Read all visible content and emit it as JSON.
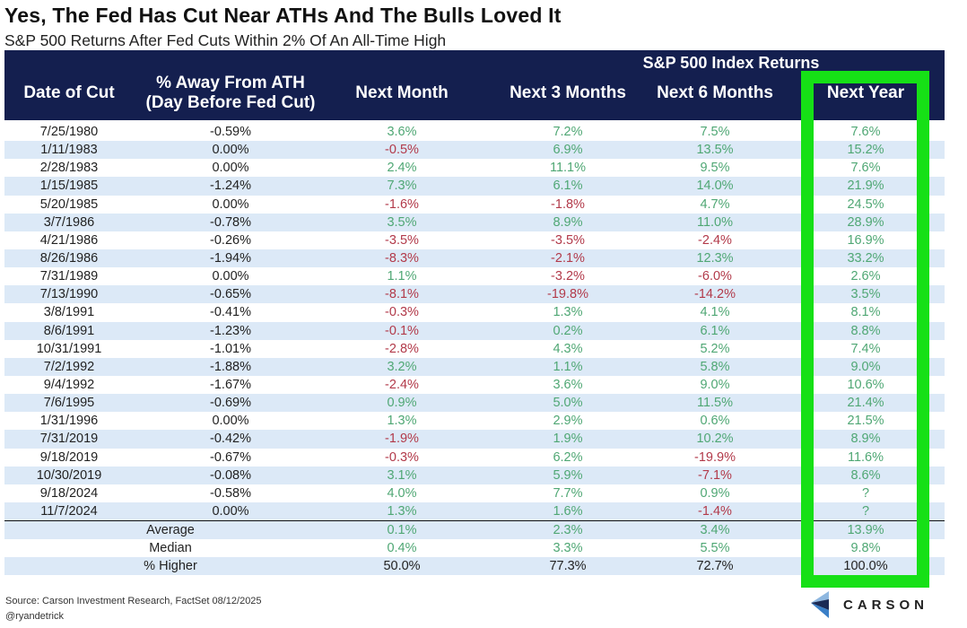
{
  "title": "Yes, The Fed Has Cut Near ATHs And The Bulls Loved It",
  "subtitle": "S&P 500 Returns After Fed Cuts Within 2% Of An All-Time High",
  "table": {
    "group_header": "S&P 500 Index Returns",
    "columns": [
      "Date of Cut",
      "% Away From ATH\n(Day Before Fed Cut)",
      "Next Month",
      "Next 3 Months",
      "Next 6 Months",
      "Next Year"
    ],
    "rows": [
      [
        "7/25/1980",
        "-0.59%",
        "3.6%",
        "7.2%",
        "7.5%",
        "7.6%"
      ],
      [
        "1/11/1983",
        "0.00%",
        "-0.5%",
        "6.9%",
        "13.5%",
        "15.2%"
      ],
      [
        "2/28/1983",
        "0.00%",
        "2.4%",
        "11.1%",
        "9.5%",
        "7.6%"
      ],
      [
        "1/15/1985",
        "-1.24%",
        "7.3%",
        "6.1%",
        "14.0%",
        "21.9%"
      ],
      [
        "5/20/1985",
        "0.00%",
        "-1.6%",
        "-1.8%",
        "4.7%",
        "24.5%"
      ],
      [
        "3/7/1986",
        "-0.78%",
        "3.5%",
        "8.9%",
        "11.0%",
        "28.9%"
      ],
      [
        "4/21/1986",
        "-0.26%",
        "-3.5%",
        "-3.5%",
        "-2.4%",
        "16.9%"
      ],
      [
        "8/26/1986",
        "-1.94%",
        "-8.3%",
        "-2.1%",
        "12.3%",
        "33.2%"
      ],
      [
        "7/31/1989",
        "0.00%",
        "1.1%",
        "-3.2%",
        "-6.0%",
        "2.6%"
      ],
      [
        "7/13/1990",
        "-0.65%",
        "-8.1%",
        "-19.8%",
        "-14.2%",
        "3.5%"
      ],
      [
        "3/8/1991",
        "-0.41%",
        "-0.3%",
        "1.3%",
        "4.1%",
        "8.1%"
      ],
      [
        "8/6/1991",
        "-1.23%",
        "-0.1%",
        "0.2%",
        "6.1%",
        "8.8%"
      ],
      [
        "10/31/1991",
        "-1.01%",
        "-2.8%",
        "4.3%",
        "5.2%",
        "7.4%"
      ],
      [
        "7/2/1992",
        "-1.88%",
        "3.2%",
        "1.1%",
        "5.8%",
        "9.0%"
      ],
      [
        "9/4/1992",
        "-1.67%",
        "-2.4%",
        "3.6%",
        "9.0%",
        "10.6%"
      ],
      [
        "7/6/1995",
        "-0.69%",
        "0.9%",
        "5.0%",
        "11.5%",
        "21.4%"
      ],
      [
        "1/31/1996",
        "0.00%",
        "1.3%",
        "2.9%",
        "0.6%",
        "21.5%"
      ],
      [
        "7/31/2019",
        "-0.42%",
        "-1.9%",
        "1.9%",
        "10.2%",
        "8.9%"
      ],
      [
        "9/18/2019",
        "-0.67%",
        "-0.3%",
        "6.2%",
        "-19.9%",
        "11.6%"
      ],
      [
        "10/30/2019",
        "-0.08%",
        "3.1%",
        "5.9%",
        "-7.1%",
        "8.6%"
      ],
      [
        "9/18/2024",
        "-0.58%",
        "4.0%",
        "7.7%",
        "0.9%",
        "?"
      ],
      [
        "11/7/2024",
        "0.00%",
        "1.3%",
        "1.6%",
        "-1.4%",
        "?"
      ]
    ],
    "summary": [
      [
        "Average",
        "0.1%",
        "2.3%",
        "3.4%",
        "13.9%"
      ],
      [
        "Median",
        "0.4%",
        "3.3%",
        "5.5%",
        "9.8%"
      ],
      [
        "% Higher",
        "50.0%",
        "77.3%",
        "72.7%",
        "100.0%"
      ]
    ]
  },
  "highlight_color": "#16e016",
  "header_color": "#141f4f",
  "positive_color": "#4fa774",
  "negative_color": "#b23a4a",
  "source": "Source: Carson Investment Research, FactSet 08/12/2025",
  "handle": "@ryandetrick",
  "logo": "CARSON"
}
